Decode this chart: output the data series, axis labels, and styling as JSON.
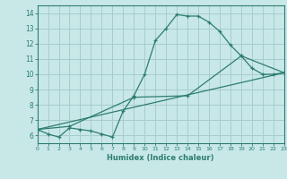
{
  "xlabel": "Humidex (Indice chaleur)",
  "xlim": [
    0,
    23
  ],
  "ylim": [
    5.5,
    14.5
  ],
  "xticks": [
    0,
    1,
    2,
    3,
    4,
    5,
    6,
    7,
    8,
    9,
    10,
    11,
    12,
    13,
    14,
    15,
    16,
    17,
    18,
    19,
    20,
    21,
    22,
    23
  ],
  "yticks": [
    6,
    7,
    8,
    9,
    10,
    11,
    12,
    13,
    14
  ],
  "bg_color": "#c8e8e8",
  "grid_color": "#a8cccc",
  "line_color": "#2d7d6e",
  "lines": [
    {
      "x": [
        0,
        1,
        2,
        3,
        4,
        5,
        6,
        7,
        8,
        9,
        10,
        11,
        12,
        13,
        14,
        15,
        16,
        17,
        18,
        19,
        20,
        21,
        22,
        23
      ],
      "y": [
        6.4,
        6.1,
        5.9,
        6.5,
        6.4,
        6.3,
        6.1,
        5.9,
        7.6,
        8.6,
        10.0,
        12.2,
        13.0,
        13.9,
        13.8,
        13.8,
        13.4,
        12.8,
        11.9,
        11.2,
        10.4,
        10.0,
        10.0,
        10.1
      ]
    },
    {
      "x": [
        0,
        3,
        9,
        14,
        19,
        23
      ],
      "y": [
        6.4,
        6.6,
        8.5,
        8.6,
        11.2,
        10.1
      ]
    },
    {
      "x": [
        0,
        23
      ],
      "y": [
        6.4,
        10.1
      ]
    }
  ]
}
